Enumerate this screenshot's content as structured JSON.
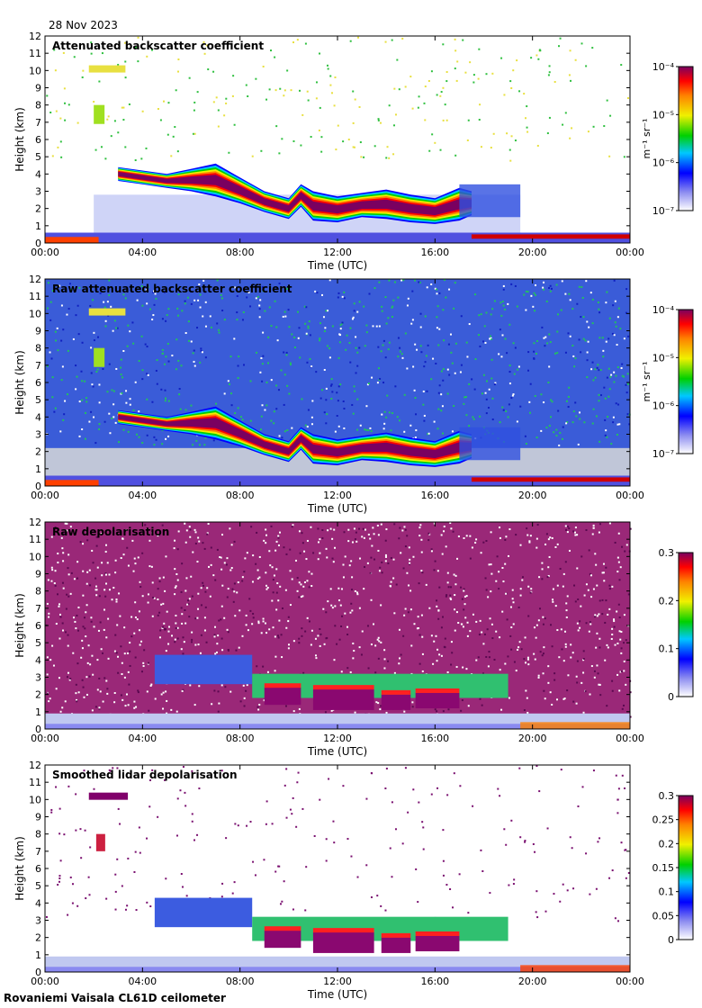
{
  "header": {
    "date": "28 Nov 2023"
  },
  "footer": {
    "caption": "Rovaniemi Vaisala CL61D ceilometer"
  },
  "chart_data": [
    {
      "type": "heatmap",
      "title": "Attenuated backscatter coefficient",
      "xlabel": "Time (UTC)",
      "ylabel": "Height (km)",
      "xlim": [
        0,
        24
      ],
      "ylim": [
        0,
        12
      ],
      "x_ticks": [
        "00:00",
        "04:00",
        "08:00",
        "12:00",
        "16:00",
        "20:00",
        "00:00"
      ],
      "y_ticks": [
        "0",
        "1",
        "2",
        "3",
        "4",
        "5",
        "6",
        "7",
        "8",
        "9",
        "10",
        "11",
        "12"
      ],
      "colorbar": {
        "scale": "log",
        "unit": "m⁻¹ sr⁻¹",
        "ticks": [
          "10⁻⁷",
          "10⁻⁶",
          "10⁻⁵",
          "10⁻⁴"
        ]
      }
    },
    {
      "type": "heatmap",
      "title": "Raw attenuated backscatter coefficient",
      "xlabel": "Time (UTC)",
      "ylabel": "Height (km)",
      "xlim": [
        0,
        24
      ],
      "ylim": [
        0,
        12
      ],
      "x_ticks": [
        "00:00",
        "04:00",
        "08:00",
        "12:00",
        "16:00",
        "20:00",
        "00:00"
      ],
      "y_ticks": [
        "0",
        "1",
        "2",
        "3",
        "4",
        "5",
        "6",
        "7",
        "8",
        "9",
        "10",
        "11",
        "12"
      ],
      "colorbar": {
        "scale": "log",
        "unit": "m⁻¹ sr⁻¹",
        "ticks": [
          "10⁻⁷",
          "10⁻⁶",
          "10⁻⁵",
          "10⁻⁴"
        ]
      }
    },
    {
      "type": "heatmap",
      "title": "Raw depolarisation",
      "xlabel": "Time (UTC)",
      "ylabel": "Height (km)",
      "xlim": [
        0,
        24
      ],
      "ylim": [
        0,
        12
      ],
      "x_ticks": [
        "00:00",
        "04:00",
        "08:00",
        "12:00",
        "16:00",
        "20:00",
        "00:00"
      ],
      "y_ticks": [
        "0",
        "1",
        "2",
        "3",
        "4",
        "5",
        "6",
        "7",
        "8",
        "9",
        "10",
        "11",
        "12"
      ],
      "colorbar": {
        "scale": "linear",
        "unit": "",
        "ticks": [
          "0",
          "0.1",
          "0.2",
          "0.3"
        ]
      }
    },
    {
      "type": "heatmap",
      "title": "Smoothed lidar depolarisation",
      "xlabel": "Time (UTC)",
      "ylabel": "Height (km)",
      "xlim": [
        0,
        24
      ],
      "ylim": [
        0,
        12
      ],
      "x_ticks": [
        "00:00",
        "04:00",
        "08:00",
        "12:00",
        "16:00",
        "20:00",
        "00:00"
      ],
      "y_ticks": [
        "0",
        "1",
        "2",
        "3",
        "4",
        "5",
        "6",
        "7",
        "8",
        "9",
        "10",
        "11",
        "12"
      ],
      "colorbar": {
        "scale": "linear",
        "unit": "",
        "ticks": [
          "0",
          "0.05",
          "0.1",
          "0.15",
          "0.2",
          "0.25",
          "0.3"
        ]
      }
    }
  ]
}
